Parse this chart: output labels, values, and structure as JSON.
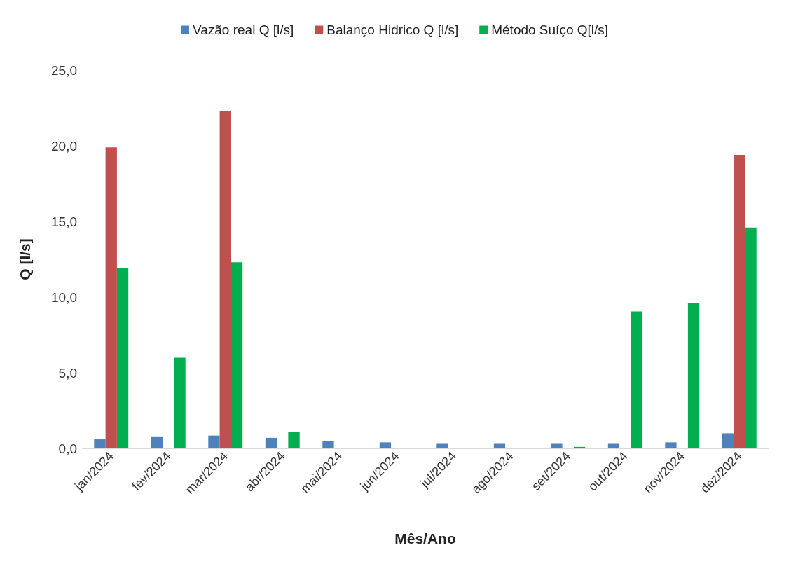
{
  "chart_data": {
    "type": "bar",
    "xlabel": "Mês/Ano",
    "ylabel": "Q [l/s]",
    "categories": [
      "jan/2024",
      "fev/2024",
      "mar/2024",
      "abr/2024",
      "mai/2024",
      "jun/2024",
      "jul/2024",
      "ago/2024",
      "set/2024",
      "out/2024",
      "nov/2024",
      "dez/2024"
    ],
    "series": [
      {
        "name": "Vazão real Q [l/s]",
        "color": "#4f81bd",
        "values": [
          0.6,
          0.75,
          0.85,
          0.7,
          0.5,
          0.4,
          0.3,
          0.3,
          0.3,
          0.3,
          0.4,
          1.0
        ]
      },
      {
        "name": "Balanço Hidrico Q [l/s]",
        "color": "#c0504d",
        "values": [
          19.9,
          0,
          22.3,
          0,
          0,
          0,
          0,
          0,
          0,
          0,
          0,
          19.4
        ]
      },
      {
        "name": "Método Suíço Q[l/s]",
        "color": "#00b050",
        "values": [
          11.9,
          6.0,
          12.3,
          1.1,
          0,
          0,
          0,
          0,
          0.1,
          9.05,
          9.6,
          14.6
        ]
      }
    ],
    "ylim": [
      0,
      25
    ],
    "yticks": [
      {
        "value": 0,
        "label": "0,0"
      },
      {
        "value": 5,
        "label": "5,0"
      },
      {
        "value": 10,
        "label": "10,0"
      },
      {
        "value": 15,
        "label": "15,0"
      },
      {
        "value": 20,
        "label": "20,0"
      },
      {
        "value": 25,
        "label": "25,0"
      }
    ],
    "grid": false,
    "legend": "top"
  }
}
